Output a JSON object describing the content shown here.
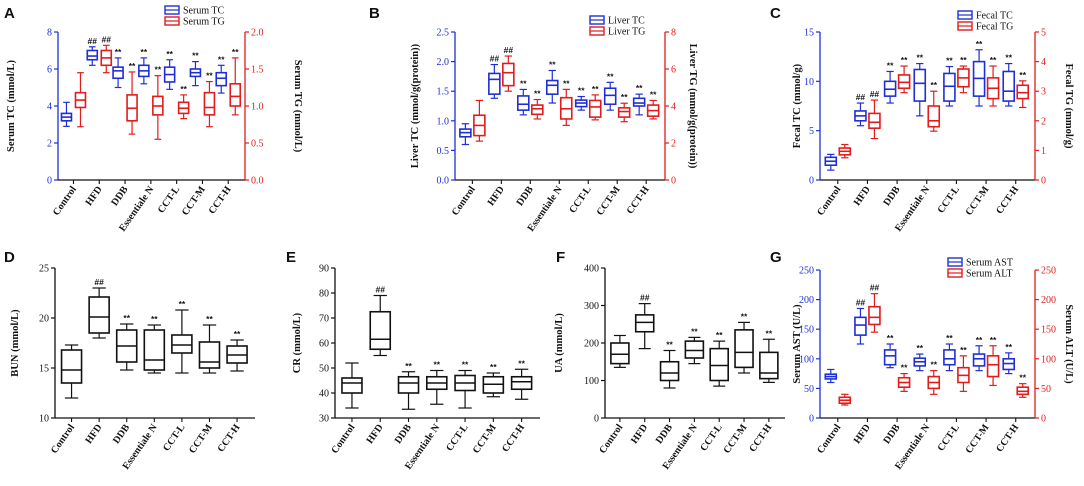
{
  "figure": {
    "groups": [
      "Control",
      "HFD",
      "DDB",
      "Essentiale N",
      "CCT-L",
      "CCT-M",
      "CCT-H"
    ],
    "colors": {
      "blue": "#1f2fd6",
      "red": "#e21b1b",
      "black": "#111111"
    }
  },
  "chart_data": [
    {
      "panel": "A",
      "type": "box",
      "ylabel": "Serum TC (mmol/L)",
      "ylabel2": "Serum TG (mmol/L)",
      "ylim": [
        0,
        8
      ],
      "yticks": [
        0,
        2,
        4,
        6,
        8
      ],
      "ylim2": [
        0,
        2.0
      ],
      "yticks2": [
        "0.0",
        "0.5",
        "1.0",
        "1.5",
        "2.0"
      ],
      "legend": [
        "Serum TC",
        "Serum TG"
      ],
      "series": [
        {
          "name": "Serum TC",
          "axis": "left",
          "color": "blue",
          "boxes": [
            {
              "min": 2.9,
              "q1": 3.2,
              "med": 3.4,
              "q3": 3.6,
              "max": 4.2,
              "label": ""
            },
            {
              "min": 6.2,
              "q1": 6.5,
              "med": 6.7,
              "q3": 7.0,
              "max": 7.2,
              "label": "##"
            },
            {
              "min": 5.0,
              "q1": 5.5,
              "med": 5.9,
              "q3": 6.1,
              "max": 6.6,
              "label": "**"
            },
            {
              "min": 5.2,
              "q1": 5.6,
              "med": 5.9,
              "q3": 6.2,
              "max": 6.6,
              "label": "**"
            },
            {
              "min": 4.9,
              "q1": 5.3,
              "med": 5.7,
              "q3": 6.1,
              "max": 6.5,
              "label": "**"
            },
            {
              "min": 5.1,
              "q1": 5.6,
              "med": 5.8,
              "q3": 6.0,
              "max": 6.4,
              "label": "**"
            },
            {
              "min": 4.7,
              "q1": 5.1,
              "med": 5.5,
              "q3": 5.8,
              "max": 6.2,
              "label": "**"
            }
          ]
        },
        {
          "name": "Serum TG",
          "axis": "right",
          "color": "red",
          "boxes": [
            {
              "min": 0.72,
              "q1": 0.98,
              "med": 1.08,
              "q3": 1.18,
              "max": 1.45,
              "label": ""
            },
            {
              "min": 1.45,
              "q1": 1.55,
              "med": 1.65,
              "q3": 1.75,
              "max": 1.82,
              "label": "##"
            },
            {
              "min": 0.62,
              "q1": 0.8,
              "med": 0.97,
              "q3": 1.15,
              "max": 1.46,
              "label": "**"
            },
            {
              "min": 0.55,
              "q1": 0.88,
              "med": 1.0,
              "q3": 1.13,
              "max": 1.41,
              "label": "**"
            },
            {
              "min": 0.83,
              "q1": 0.9,
              "med": 0.97,
              "q3": 1.05,
              "max": 1.15,
              "label": "**"
            },
            {
              "min": 0.72,
              "q1": 0.88,
              "med": 0.98,
              "q3": 1.18,
              "max": 1.33,
              "label": "**"
            },
            {
              "min": 0.88,
              "q1": 1.0,
              "med": 1.13,
              "q3": 1.3,
              "max": 1.65,
              "label": "**"
            }
          ]
        }
      ]
    },
    {
      "panel": "B",
      "type": "box",
      "ylabel": "Liver TC (mmol/g(protein))",
      "ylabel2": "Liver TG (mmol/g(protein))",
      "ylim": [
        0,
        2.5
      ],
      "yticks": [
        "0.0",
        "0.5",
        "1.0",
        "1.5",
        "2.0",
        "2.5"
      ],
      "ylim2": [
        0,
        8
      ],
      "yticks2": [
        "0",
        "2",
        "4",
        "6",
        "8"
      ],
      "legend": [
        "Liver TC",
        "Liver TG"
      ],
      "series": [
        {
          "name": "Liver TC",
          "axis": "left",
          "color": "blue",
          "boxes": [
            {
              "min": 0.6,
              "q1": 0.73,
              "med": 0.8,
              "q3": 0.86,
              "max": 0.95,
              "label": ""
            },
            {
              "min": 1.38,
              "q1": 1.45,
              "med": 1.7,
              "q3": 1.8,
              "max": 1.95,
              "label": "##"
            },
            {
              "min": 1.1,
              "q1": 1.18,
              "med": 1.28,
              "q3": 1.42,
              "max": 1.53,
              "label": "**"
            },
            {
              "min": 1.3,
              "q1": 1.45,
              "med": 1.6,
              "q3": 1.68,
              "max": 1.85,
              "label": "**"
            },
            {
              "min": 1.18,
              "q1": 1.24,
              "med": 1.3,
              "q3": 1.35,
              "max": 1.41,
              "label": "**"
            },
            {
              "min": 1.18,
              "q1": 1.28,
              "med": 1.43,
              "q3": 1.55,
              "max": 1.65,
              "label": "**"
            },
            {
              "min": 1.1,
              "q1": 1.25,
              "med": 1.3,
              "q3": 1.38,
              "max": 1.45,
              "label": "**"
            }
          ]
        },
        {
          "name": "Liver TG",
          "axis": "right",
          "color": "red",
          "boxes": [
            {
              "min": 2.1,
              "q1": 2.4,
              "med": 2.95,
              "q3": 3.5,
              "max": 4.3,
              "label": ""
            },
            {
              "min": 4.8,
              "q1": 5.1,
              "med": 5.8,
              "q3": 6.3,
              "max": 6.7,
              "label": "##"
            },
            {
              "min": 3.3,
              "q1": 3.55,
              "med": 3.85,
              "q3": 4.05,
              "max": 4.35,
              "label": "**"
            },
            {
              "min": 2.95,
              "q1": 3.3,
              "med": 3.85,
              "q3": 4.45,
              "max": 4.9,
              "label": "**"
            },
            {
              "min": 3.25,
              "q1": 3.4,
              "med": 3.95,
              "q3": 4.3,
              "max": 4.6,
              "label": "**"
            },
            {
              "min": 3.15,
              "q1": 3.4,
              "med": 3.7,
              "q3": 3.9,
              "max": 4.15,
              "label": "**"
            },
            {
              "min": 3.3,
              "q1": 3.45,
              "med": 3.75,
              "q3": 4.05,
              "max": 4.3,
              "label": "**"
            }
          ]
        }
      ]
    },
    {
      "panel": "C",
      "type": "box",
      "ylabel": "Fecal TC (mmol/g)",
      "ylabel2": "Fecal TG (mmol/g)",
      "ylim": [
        0,
        15
      ],
      "yticks": [
        "0",
        "5",
        "10",
        "15"
      ],
      "ylim2": [
        0,
        5
      ],
      "yticks2": [
        "0",
        "1",
        "2",
        "3",
        "4",
        "5"
      ],
      "legend": [
        "Fecal TC",
        "Fecal TG"
      ],
      "series": [
        {
          "name": "Fecal TC",
          "axis": "left",
          "color": "blue",
          "boxes": [
            {
              "min": 1.0,
              "q1": 1.5,
              "med": 1.9,
              "q3": 2.3,
              "max": 2.6,
              "label": ""
            },
            {
              "min": 5.5,
              "q1": 6.0,
              "med": 6.5,
              "q3": 7.0,
              "max": 7.8,
              "label": "##"
            },
            {
              "min": 7.8,
              "q1": 8.5,
              "med": 9.2,
              "q3": 10.0,
              "max": 11.0,
              "label": "**"
            },
            {
              "min": 6.5,
              "q1": 8.0,
              "med": 9.8,
              "q3": 11.2,
              "max": 11.8,
              "label": "**"
            },
            {
              "min": 7.5,
              "q1": 8.0,
              "med": 9.5,
              "q3": 10.8,
              "max": 11.5,
              "label": "**"
            },
            {
              "min": 7.5,
              "q1": 8.5,
              "med": 10.3,
              "q3": 12.0,
              "max": 13.2,
              "label": "**"
            },
            {
              "min": 7.5,
              "q1": 8.0,
              "med": 9.0,
              "q3": 11.0,
              "max": 11.8,
              "label": "**"
            }
          ]
        },
        {
          "name": "Fecal TG",
          "axis": "right",
          "color": "red",
          "boxes": [
            {
              "min": 0.75,
              "q1": 0.85,
              "med": 0.97,
              "q3": 1.08,
              "max": 1.2,
              "label": ""
            },
            {
              "min": 1.4,
              "q1": 1.75,
              "med": 1.95,
              "q3": 2.25,
              "max": 2.7,
              "label": "##"
            },
            {
              "min": 2.95,
              "q1": 3.1,
              "med": 3.3,
              "q3": 3.55,
              "max": 3.85,
              "label": "**"
            },
            {
              "min": 1.65,
              "q1": 1.8,
              "med": 2.0,
              "q3": 2.5,
              "max": 3.0,
              "label": "**"
            },
            {
              "min": 2.95,
              "q1": 3.15,
              "med": 3.45,
              "q3": 3.75,
              "max": 3.85,
              "label": "**"
            },
            {
              "min": 2.5,
              "q1": 2.75,
              "med": 3.1,
              "q3": 3.45,
              "max": 3.85,
              "label": "**"
            },
            {
              "min": 2.45,
              "q1": 2.75,
              "med": 2.95,
              "q3": 3.2,
              "max": 3.35,
              "label": "**"
            }
          ]
        }
      ]
    },
    {
      "panel": "D",
      "type": "box",
      "ylabel": "BUN (mmol/L)",
      "ylim": [
        10,
        25
      ],
      "yticks": [
        "10",
        "15",
        "20",
        "25"
      ],
      "series": [
        {
          "name": "BUN",
          "axis": "left",
          "color": "black",
          "boxes": [
            {
              "min": 12.0,
              "q1": 13.5,
              "med": 14.8,
              "q3": 16.8,
              "max": 17.3,
              "label": ""
            },
            {
              "min": 18.0,
              "q1": 18.5,
              "med": 20.1,
              "q3": 22.1,
              "max": 23.0,
              "label": "##"
            },
            {
              "min": 14.8,
              "q1": 15.6,
              "med": 17.2,
              "q3": 18.8,
              "max": 19.4,
              "label": "**"
            },
            {
              "min": 14.5,
              "q1": 14.8,
              "med": 15.8,
              "q3": 18.8,
              "max": 19.3,
              "label": "**"
            },
            {
              "min": 14.5,
              "q1": 16.5,
              "med": 17.3,
              "q3": 18.3,
              "max": 20.8,
              "label": "**"
            },
            {
              "min": 14.5,
              "q1": 15.0,
              "med": 15.6,
              "q3": 17.6,
              "max": 19.3,
              "label": "**"
            },
            {
              "min": 14.7,
              "q1": 15.5,
              "med": 16.3,
              "q3": 17.2,
              "max": 17.8,
              "label": "**"
            }
          ]
        }
      ]
    },
    {
      "panel": "E",
      "type": "box",
      "ylabel": "CR (mmol/L)",
      "ylim": [
        30,
        90
      ],
      "yticks": [
        "30",
        "40",
        "50",
        "60",
        "70",
        "80",
        "90"
      ],
      "series": [
        {
          "name": "CR",
          "axis": "left",
          "color": "black",
          "boxes": [
            {
              "min": 34.0,
              "q1": 40.0,
              "med": 44.0,
              "q3": 46.0,
              "max": 52.0,
              "label": ""
            },
            {
              "min": 55.0,
              "q1": 57.5,
              "med": 61.5,
              "q3": 72.5,
              "max": 79.0,
              "label": "##"
            },
            {
              "min": 33.5,
              "q1": 40.0,
              "med": 44.0,
              "q3": 46.5,
              "max": 48.5,
              "label": "**"
            },
            {
              "min": 35.5,
              "q1": 41.5,
              "med": 44.0,
              "q3": 46.5,
              "max": 49.0,
              "label": "**"
            },
            {
              "min": 34.0,
              "q1": 41.0,
              "med": 44.0,
              "q3": 47.0,
              "max": 49.0,
              "label": "**"
            },
            {
              "min": 38.5,
              "q1": 40.0,
              "med": 43.5,
              "q3": 46.5,
              "max": 48.0,
              "label": "**"
            },
            {
              "min": 37.5,
              "q1": 41.5,
              "med": 44.5,
              "q3": 46.5,
              "max": 49.5,
              "label": "**"
            }
          ]
        }
      ]
    },
    {
      "panel": "F",
      "type": "box",
      "ylabel": "UA (mmol/L)",
      "ylim": [
        0,
        400
      ],
      "yticks": [
        "0",
        "100",
        "200",
        "300",
        "400"
      ],
      "series": [
        {
          "name": "UA",
          "axis": "left",
          "color": "black",
          "boxes": [
            {
              "min": 135,
              "q1": 145,
              "med": 170,
              "q3": 200,
              "max": 220,
              "label": ""
            },
            {
              "min": 185,
              "q1": 230,
              "med": 255,
              "q3": 275,
              "max": 305,
              "label": "##"
            },
            {
              "min": 80,
              "q1": 100,
              "med": 120,
              "q3": 150,
              "max": 180,
              "label": "**"
            },
            {
              "min": 145,
              "q1": 160,
              "med": 180,
              "q3": 205,
              "max": 215,
              "label": "**"
            },
            {
              "min": 85,
              "q1": 100,
              "med": 140,
              "q3": 185,
              "max": 205,
              "label": "**"
            },
            {
              "min": 120,
              "q1": 135,
              "med": 175,
              "q3": 235,
              "max": 255,
              "label": "**"
            },
            {
              "min": 95,
              "q1": 105,
              "med": 120,
              "q3": 175,
              "max": 210,
              "label": "**"
            }
          ]
        }
      ]
    },
    {
      "panel": "G",
      "type": "box",
      "ylabel": "Serum AST (U/L)",
      "ylabel2": "Serum ALT (U/L)",
      "ylim": [
        0,
        250
      ],
      "yticks": [
        "0",
        "50",
        "100",
        "150",
        "200",
        "250"
      ],
      "ylim2": [
        0,
        250
      ],
      "yticks2": [
        "0",
        "50",
        "100",
        "150",
        "200",
        "250"
      ],
      "legend": [
        "Serum AST",
        "Serum ALT"
      ],
      "series": [
        {
          "name": "Serum AST",
          "axis": "left",
          "color": "blue",
          "boxes": [
            {
              "min": 60,
              "q1": 66,
              "med": 70,
              "q3": 74,
              "max": 82,
              "label": ""
            },
            {
              "min": 125,
              "q1": 140,
              "med": 157,
              "q3": 170,
              "max": 185,
              "label": "##"
            },
            {
              "min": 85,
              "q1": 90,
              "med": 105,
              "q3": 115,
              "max": 125,
              "label": "**"
            },
            {
              "min": 80,
              "q1": 88,
              "med": 95,
              "q3": 101,
              "max": 108,
              "label": "**"
            },
            {
              "min": 80,
              "q1": 90,
              "med": 100,
              "q3": 115,
              "max": 125,
              "label": "**"
            },
            {
              "min": 80,
              "q1": 88,
              "med": 100,
              "q3": 108,
              "max": 122,
              "label": "**"
            },
            {
              "min": 75,
              "q1": 82,
              "med": 92,
              "q3": 100,
              "max": 110,
              "label": "**"
            }
          ]
        },
        {
          "name": "Serum ALT",
          "axis": "right",
          "color": "red",
          "boxes": [
            {
              "min": 22,
              "q1": 25,
              "med": 30,
              "q3": 35,
              "max": 40,
              "label": ""
            },
            {
              "min": 145,
              "q1": 158,
              "med": 170,
              "q3": 188,
              "max": 210,
              "label": "##"
            },
            {
              "min": 45,
              "q1": 52,
              "med": 60,
              "q3": 68,
              "max": 75,
              "label": "**"
            },
            {
              "min": 40,
              "q1": 50,
              "med": 60,
              "q3": 70,
              "max": 80,
              "label": "**"
            },
            {
              "min": 45,
              "q1": 60,
              "med": 72,
              "q3": 85,
              "max": 105,
              "label": "**"
            },
            {
              "min": 55,
              "q1": 70,
              "med": 90,
              "q3": 105,
              "max": 122,
              "label": "**"
            },
            {
              "min": 35,
              "q1": 40,
              "med": 45,
              "q3": 52,
              "max": 58,
              "label": "**"
            }
          ]
        }
      ]
    }
  ]
}
